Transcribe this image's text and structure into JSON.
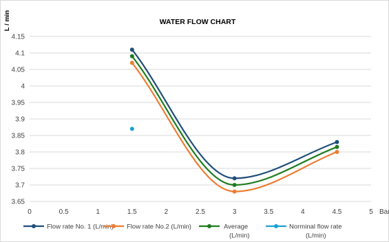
{
  "chart_data": {
    "type": "line",
    "title": "WATER FLOW CHART",
    "ylabel": "L / min",
    "xlabel": "Bar",
    "xlim": [
      0,
      5
    ],
    "ylim": [
      3.65,
      4.15
    ],
    "xticks": [
      "0",
      "0.5",
      "1",
      "1.5",
      "2",
      "2.5",
      "3",
      "3.5",
      "4",
      "4.5",
      "5"
    ],
    "yticks": [
      "4.15",
      "4.1",
      "4.05",
      "4",
      "3.95",
      "3.9",
      "3.85",
      "3.8",
      "3.75",
      "3.7",
      "3.65"
    ],
    "grid": "horizontal",
    "legend_position": "bottom",
    "series": [
      {
        "name": "Flow rate No. 1 (L/min)",
        "color": "#1f4e79",
        "smooth": true,
        "x": [
          1.5,
          3,
          4.5
        ],
        "y": [
          4.11,
          3.72,
          3.83
        ]
      },
      {
        "name": "Flow rate No.2 (L/min)",
        "color": "#ed7d31",
        "smooth": true,
        "x": [
          1.5,
          3,
          4.5
        ],
        "y": [
          4.07,
          3.68,
          3.8
        ]
      },
      {
        "name": "Average (L/min)",
        "color": "#1e7b1e",
        "smooth": true,
        "x": [
          1.5,
          3,
          4.5
        ],
        "y": [
          4.09,
          3.7,
          3.815
        ]
      },
      {
        "name": "Norminal flow rate (L/min)",
        "color": "#1ba1d4",
        "smooth": false,
        "x": [
          1.5
        ],
        "y": [
          3.87
        ]
      }
    ]
  }
}
